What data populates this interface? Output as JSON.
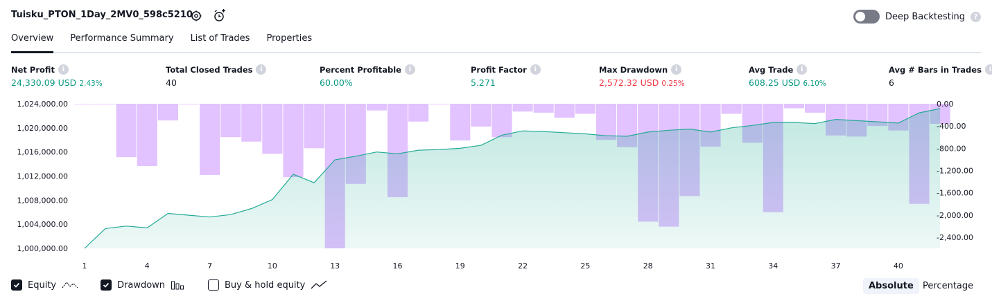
{
  "header": {
    "title": "Tuisku_PTON_1Day_2MV0_598c5210",
    "deep_backtesting": "Deep Backtesting"
  },
  "tabs": [
    {
      "label": "Overview"
    },
    {
      "label": "Performance Summary"
    },
    {
      "label": "List of Trades"
    },
    {
      "label": "Properties"
    }
  ],
  "metrics": [
    {
      "label": "Net Profit",
      "value": "24,330.09 USD",
      "pct": "2.43%",
      "color": "#089981"
    },
    {
      "label": "Total Closed Trades",
      "value": "40",
      "pct": "",
      "color": "#131722"
    },
    {
      "label": "Percent Profitable",
      "value": "60.00%",
      "pct": "",
      "color": "#089981"
    },
    {
      "label": "Profit Factor",
      "value": "5.271",
      "pct": "",
      "color": "#089981"
    },
    {
      "label": "Max Drawdown",
      "value": "2,572.32 USD",
      "pct": "0.25%",
      "color": "#f23645"
    },
    {
      "label": "Avg Trade",
      "value": "608.25 USD",
      "pct": "6.10%",
      "color": "#089981"
    },
    {
      "label": "Avg # Bars in Trades",
      "value": "6",
      "pct": "",
      "color": "#131722"
    }
  ],
  "legend": {
    "equity": "Equity",
    "drawdown": "Drawdown",
    "buy_hold": "Buy & hold equity"
  },
  "view_toggle": {
    "absolute": "Absolute",
    "percentage": "Percentage"
  },
  "chart_data": {
    "type": "line+bar",
    "x_ticks": [
      1,
      4,
      7,
      10,
      13,
      16,
      19,
      22,
      25,
      28,
      31,
      34,
      37,
      40
    ],
    "x_range": [
      1,
      41
    ],
    "equity_axis": {
      "ticks": [
        "1,024,000.00",
        "1,020,000.00",
        "1,016,000.00",
        "1,012,000.00",
        "1,008,000.00",
        "1,004,000.00",
        "1,000,000.00"
      ],
      "range": [
        1000000,
        1024000
      ]
    },
    "drawdown_axis": {
      "ticks": [
        "0.00",
        "-400.00",
        "-800.00",
        "-1,200.00",
        "-1,600.00",
        "-2,000.00",
        "-2,400.00"
      ],
      "range": [
        -2600,
        0
      ]
    },
    "series": [
      {
        "name": "Equity",
        "type": "area",
        "color": "#22ab94",
        "values": [
          1000000,
          1003300,
          1003700,
          1003400,
          1005800,
          1005500,
          1005200,
          1005600,
          1006600,
          1008100,
          1012300,
          1010900,
          1014700,
          1015300,
          1016000,
          1015700,
          1016300,
          1016400,
          1016600,
          1017100,
          1018800,
          1019500,
          1019400,
          1019200,
          1019000,
          1018700,
          1018600,
          1019300,
          1019600,
          1019800,
          1019300,
          1020000,
          1020400,
          1020900,
          1020900,
          1020700,
          1021400,
          1021200,
          1021000,
          1020800,
          1022500,
          1023200
        ]
      },
      {
        "name": "Drawdown",
        "type": "bar",
        "color": "#cf99ff",
        "values": [
          0,
          0,
          -960,
          -1120,
          -300,
          0,
          -1280,
          -600,
          -680,
          -900,
          -1320,
          -800,
          -2600,
          -1440,
          -120,
          -1680,
          -320,
          0,
          -660,
          -410,
          -600,
          -140,
          -160,
          -250,
          -180,
          -650,
          -780,
          -2120,
          -2210,
          -1660,
          -770,
          -180,
          -700,
          -1950,
          -80,
          -160,
          -570,
          -590,
          -400,
          -480,
          -1800,
          -360
        ]
      }
    ]
  }
}
